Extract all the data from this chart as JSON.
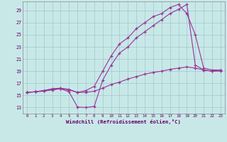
{
  "bg_color": "#c8e8e8",
  "grid_color": "#a0c8c8",
  "line_color": "#993399",
  "xlabel": "Windchill (Refroidissement éolien,°C)",
  "xlim": [
    -0.5,
    23.5
  ],
  "ylim": [
    12.0,
    30.5
  ],
  "xticks": [
    0,
    1,
    2,
    3,
    4,
    5,
    6,
    7,
    8,
    9,
    10,
    11,
    12,
    13,
    14,
    15,
    16,
    17,
    18,
    19,
    20,
    21,
    22,
    23
  ],
  "yticks": [
    13,
    15,
    17,
    19,
    21,
    23,
    25,
    27,
    29
  ],
  "s1_y": [
    15.5,
    15.6,
    15.7,
    15.9,
    16.1,
    15.6,
    13.1,
    13.0,
    13.2,
    17.5,
    20.0,
    22.0,
    23.0,
    24.5,
    25.5,
    26.5,
    27.5,
    28.5,
    29.2,
    30.0,
    20.0,
    19.2,
    19.0,
    19.2
  ],
  "s2_y": [
    15.5,
    15.6,
    15.8,
    16.1,
    16.2,
    16.0,
    15.5,
    15.8,
    16.5,
    19.0,
    21.5,
    23.5,
    24.5,
    26.0,
    27.0,
    28.0,
    28.5,
    29.5,
    30.0,
    28.5,
    25.0,
    19.5,
    19.2,
    19.2
  ],
  "s3_y": [
    15.5,
    15.6,
    15.8,
    16.0,
    16.1,
    15.9,
    15.5,
    15.5,
    15.7,
    16.2,
    16.8,
    17.2,
    17.7,
    18.1,
    18.5,
    18.8,
    19.0,
    19.3,
    19.5,
    19.7,
    19.5,
    19.2,
    19.0,
    19.0
  ]
}
